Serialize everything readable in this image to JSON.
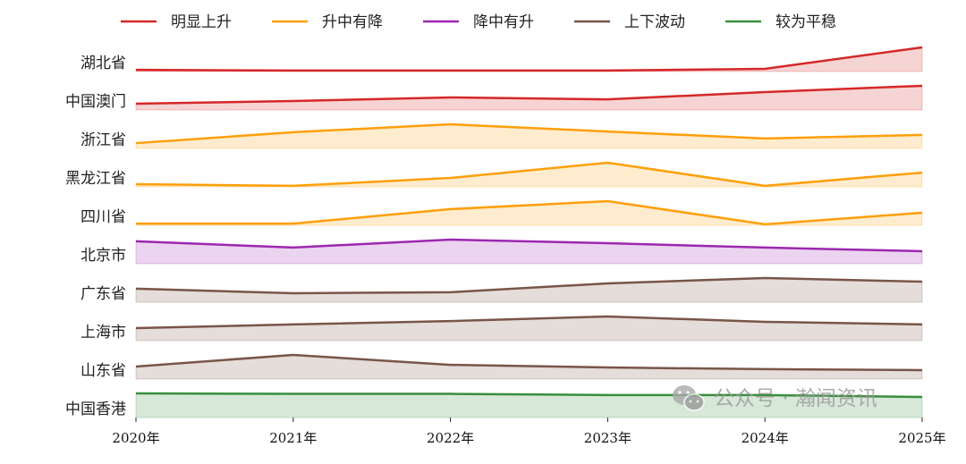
{
  "chart_data": {
    "type": "area",
    "title": "",
    "xlabel": "",
    "ylabel": "",
    "categories": [
      "2020年",
      "2021年",
      "2022年",
      "2023年",
      "2024年",
      "2025年"
    ],
    "legend": {
      "placement": "top",
      "entries": [
        {
          "name": "明显上升",
          "color": "#d62728"
        },
        {
          "name": "升中有降",
          "color": "#ff9f0a"
        },
        {
          "name": "降中有升",
          "color": "#9c27b0"
        },
        {
          "name": "上下波动",
          "color": "#795548"
        },
        {
          "name": "较为平稳",
          "color": "#388e3c"
        }
      ]
    },
    "series": [
      {
        "name": "湖北省",
        "group": "明显上升",
        "values": [
          0.07,
          0.04,
          0.04,
          0.04,
          0.11,
          1.0
        ]
      },
      {
        "name": "中国澳门",
        "group": "明显上升",
        "values": [
          0.26,
          0.37,
          0.52,
          0.44,
          0.74,
          1.0
        ]
      },
      {
        "name": "浙江省",
        "group": "升中有降",
        "values": [
          0.22,
          0.67,
          1.0,
          0.7,
          0.41,
          0.56
        ]
      },
      {
        "name": "黑龙江省",
        "group": "升中有降",
        "values": [
          0.11,
          0.04,
          0.37,
          1.0,
          0.04,
          0.59
        ]
      },
      {
        "name": "四川省",
        "group": "升中有降",
        "values": [
          0.07,
          0.07,
          0.67,
          1.0,
          0.04,
          0.52
        ]
      },
      {
        "name": "北京市",
        "group": "降中有升",
        "values": [
          0.93,
          0.67,
          1.0,
          0.85,
          0.67,
          0.52
        ]
      },
      {
        "name": "广东省",
        "group": "上下波动",
        "values": [
          0.56,
          0.37,
          0.41,
          0.78,
          1.0,
          0.85
        ]
      },
      {
        "name": "上海市",
        "group": "上下波动",
        "values": [
          0.52,
          0.67,
          0.81,
          1.0,
          0.78,
          0.67
        ]
      },
      {
        "name": "山东省",
        "group": "上下波动",
        "values": [
          0.52,
          1.0,
          0.59,
          0.48,
          0.41,
          0.37
        ]
      },
      {
        "name": "中国香港",
        "group": "较为平稳",
        "values": [
          1.0,
          0.98,
          0.98,
          0.93,
          0.93,
          0.85
        ]
      }
    ],
    "grid": false
  },
  "watermark": {
    "text": "公众号 · 瀚闻资讯",
    "icon": "wechat-icon"
  }
}
